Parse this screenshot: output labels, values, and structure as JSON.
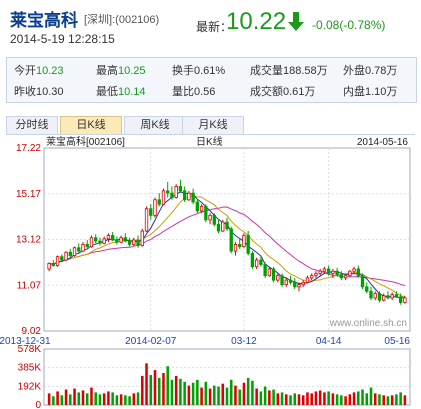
{
  "header": {
    "stock_name": "莱宝高科",
    "exchange_code": "[深圳]:(002106)",
    "datetime": "2014-5-19 12:28:15",
    "latest_label": "最新：",
    "latest_price": "10.22",
    "change": "-0.08(-0.78%)",
    "colors": {
      "down": "#1a9a1a",
      "up": "#cc0000"
    }
  },
  "quote": {
    "row1": [
      {
        "label": "今开",
        "value": "10.23",
        "tone": "down"
      },
      {
        "label": "最高",
        "value": "10.25",
        "tone": "down"
      },
      {
        "label": "换手",
        "value": "0.61%",
        "tone": "neutral"
      },
      {
        "label": "成交量",
        "value": "188.58万",
        "tone": "neutral"
      },
      {
        "label": "外盘",
        "value": "0.78万",
        "tone": "neutral"
      }
    ],
    "row2": [
      {
        "label": "昨收",
        "value": "10.30",
        "tone": "neutral"
      },
      {
        "label": "最低",
        "value": "10.14",
        "tone": "down"
      },
      {
        "label": "量比",
        "value": "0.56",
        "tone": "neutral"
      },
      {
        "label": "成交额",
        "value": "0.61万",
        "tone": "neutral"
      },
      {
        "label": "内盘",
        "value": "1.10万",
        "tone": "neutral"
      }
    ]
  },
  "tabs": [
    {
      "label": "分时线",
      "active": false
    },
    {
      "label": "日K线",
      "active": true
    },
    {
      "label": "周K线",
      "active": false
    },
    {
      "label": "月K线",
      "active": false
    }
  ],
  "chart_data": {
    "type": "candlestick",
    "title_left": "莱宝高科[002106]",
    "title_center": "日K线",
    "title_right": "2014-05-16",
    "watermark": "www.online.sh.cn",
    "y_ticks": [
      "17.22",
      "15.17",
      "13.12",
      "11.07",
      "9.02"
    ],
    "ylim": [
      9.02,
      17.22
    ],
    "x_ticks": [
      "2013-12-31",
      "2014-02-07",
      "03-12",
      "04-14",
      "05-16"
    ],
    "volume_ticks": [
      "578K",
      "385K",
      "192K",
      "0"
    ],
    "volume_max": 578,
    "ma_colors": {
      "ma5": "#2233aa",
      "ma10": "#c8a000",
      "ma20": "#cc33aa"
    },
    "candle_colors": {
      "up": "#dd0000",
      "down": "#00a000"
    },
    "candles": [
      [
        11.8,
        12.1,
        11.7,
        12.05,
        120
      ],
      [
        12.05,
        12.2,
        11.9,
        11.95,
        90
      ],
      [
        11.95,
        12.4,
        11.9,
        12.35,
        140
      ],
      [
        12.35,
        12.45,
        12.1,
        12.2,
        100
      ],
      [
        12.2,
        12.6,
        12.15,
        12.55,
        160
      ],
      [
        12.55,
        12.7,
        12.3,
        12.4,
        110
      ],
      [
        12.4,
        12.8,
        12.35,
        12.75,
        170
      ],
      [
        12.75,
        12.95,
        12.5,
        12.6,
        130
      ],
      [
        12.6,
        13.0,
        12.55,
        12.9,
        150
      ],
      [
        12.9,
        13.1,
        12.7,
        12.8,
        120
      ],
      [
        12.8,
        13.3,
        12.75,
        13.2,
        180
      ],
      [
        13.2,
        13.35,
        12.95,
        13.05,
        130
      ],
      [
        13.05,
        13.2,
        12.85,
        12.95,
        110
      ],
      [
        12.95,
        13.25,
        12.9,
        13.15,
        120
      ],
      [
        13.15,
        13.4,
        13.0,
        13.3,
        140
      ],
      [
        13.3,
        13.45,
        13.05,
        13.1,
        130
      ],
      [
        13.1,
        13.25,
        12.9,
        13.0,
        100
      ],
      [
        13.0,
        13.3,
        12.95,
        13.2,
        110
      ],
      [
        13.2,
        13.4,
        13.0,
        13.05,
        100
      ],
      [
        13.05,
        13.2,
        12.8,
        12.9,
        90
      ],
      [
        12.9,
        13.2,
        12.85,
        13.1,
        120
      ],
      [
        13.1,
        13.3,
        12.75,
        12.85,
        130
      ],
      [
        12.85,
        13.6,
        12.8,
        13.5,
        300
      ],
      [
        13.5,
        14.6,
        13.45,
        14.5,
        430
      ],
      [
        14.5,
        14.7,
        14.0,
        14.2,
        310
      ],
      [
        14.2,
        15.0,
        14.1,
        14.9,
        360
      ],
      [
        14.9,
        15.2,
        14.6,
        14.7,
        280
      ],
      [
        14.7,
        15.4,
        14.65,
        15.3,
        330
      ],
      [
        15.3,
        15.7,
        15.0,
        15.2,
        400
      ],
      [
        15.2,
        15.5,
        14.9,
        15.0,
        260
      ],
      [
        15.0,
        15.6,
        14.95,
        15.5,
        300
      ],
      [
        15.5,
        15.8,
        15.2,
        15.3,
        270
      ],
      [
        15.3,
        15.5,
        14.8,
        14.9,
        240
      ],
      [
        14.9,
        15.3,
        14.85,
        15.2,
        200
      ],
      [
        15.2,
        15.4,
        14.7,
        14.8,
        230
      ],
      [
        14.8,
        14.9,
        14.3,
        14.4,
        260
      ],
      [
        14.4,
        14.7,
        14.3,
        14.6,
        180
      ],
      [
        14.6,
        14.7,
        13.9,
        14.0,
        240
      ],
      [
        14.0,
        14.3,
        13.8,
        14.2,
        170
      ],
      [
        14.2,
        14.3,
        13.7,
        13.8,
        200
      ],
      [
        13.8,
        14.0,
        13.4,
        13.5,
        190
      ],
      [
        13.5,
        14.0,
        13.45,
        13.9,
        220
      ],
      [
        13.9,
        14.1,
        13.5,
        13.6,
        180
      ],
      [
        13.6,
        13.7,
        12.5,
        12.6,
        260
      ],
      [
        12.6,
        13.0,
        12.4,
        12.9,
        200
      ],
      [
        12.9,
        13.2,
        12.7,
        12.8,
        160
      ],
      [
        12.8,
        13.4,
        12.75,
        13.3,
        230
      ],
      [
        13.3,
        13.5,
        12.4,
        12.5,
        280
      ],
      [
        12.5,
        12.6,
        11.8,
        11.9,
        250
      ],
      [
        11.9,
        12.3,
        11.8,
        12.2,
        170
      ],
      [
        12.2,
        12.4,
        11.9,
        12.0,
        140
      ],
      [
        12.0,
        12.1,
        11.4,
        11.5,
        190
      ],
      [
        11.5,
        11.9,
        11.45,
        11.8,
        150
      ],
      [
        11.8,
        11.9,
        11.2,
        11.3,
        160
      ],
      [
        11.3,
        11.6,
        11.2,
        11.5,
        120
      ],
      [
        11.5,
        11.6,
        11.0,
        11.1,
        130
      ],
      [
        11.1,
        11.4,
        11.0,
        11.3,
        110
      ],
      [
        11.3,
        11.5,
        11.1,
        11.2,
        100
      ],
      [
        11.2,
        11.4,
        10.9,
        11.0,
        120
      ],
      [
        11.0,
        11.2,
        10.8,
        11.1,
        110
      ],
      [
        11.1,
        11.3,
        11.0,
        11.2,
        100
      ],
      [
        11.2,
        11.5,
        11.15,
        11.4,
        130
      ],
      [
        11.4,
        11.6,
        11.3,
        11.5,
        120
      ],
      [
        11.5,
        11.7,
        11.4,
        11.6,
        140
      ],
      [
        11.6,
        11.8,
        11.5,
        11.7,
        150
      ],
      [
        11.7,
        11.9,
        11.6,
        11.8,
        130
      ],
      [
        11.8,
        11.95,
        11.5,
        11.6,
        140
      ],
      [
        11.6,
        11.8,
        11.4,
        11.7,
        120
      ],
      [
        11.7,
        11.85,
        11.45,
        11.55,
        110
      ],
      [
        11.55,
        11.7,
        11.3,
        11.4,
        100
      ],
      [
        11.4,
        11.6,
        11.3,
        11.5,
        90
      ],
      [
        11.5,
        11.75,
        11.45,
        11.7,
        110
      ],
      [
        11.7,
        11.9,
        11.6,
        11.8,
        130
      ],
      [
        11.8,
        11.95,
        11.4,
        11.5,
        140
      ],
      [
        11.5,
        11.6,
        10.9,
        11.0,
        160
      ],
      [
        11.0,
        11.2,
        10.7,
        10.8,
        120
      ],
      [
        10.8,
        11.0,
        10.4,
        10.5,
        180
      ],
      [
        10.5,
        10.8,
        10.4,
        10.7,
        120
      ],
      [
        10.7,
        10.8,
        10.3,
        10.4,
        110
      ],
      [
        10.4,
        10.7,
        10.35,
        10.6,
        100
      ],
      [
        10.6,
        10.8,
        10.45,
        10.5,
        90
      ],
      [
        10.5,
        10.75,
        10.4,
        10.65,
        100
      ],
      [
        10.65,
        10.8,
        10.5,
        10.55,
        110
      ],
      [
        10.55,
        10.7,
        10.2,
        10.3,
        130
      ],
      [
        10.3,
        10.6,
        10.25,
        10.5,
        100
      ]
    ]
  }
}
